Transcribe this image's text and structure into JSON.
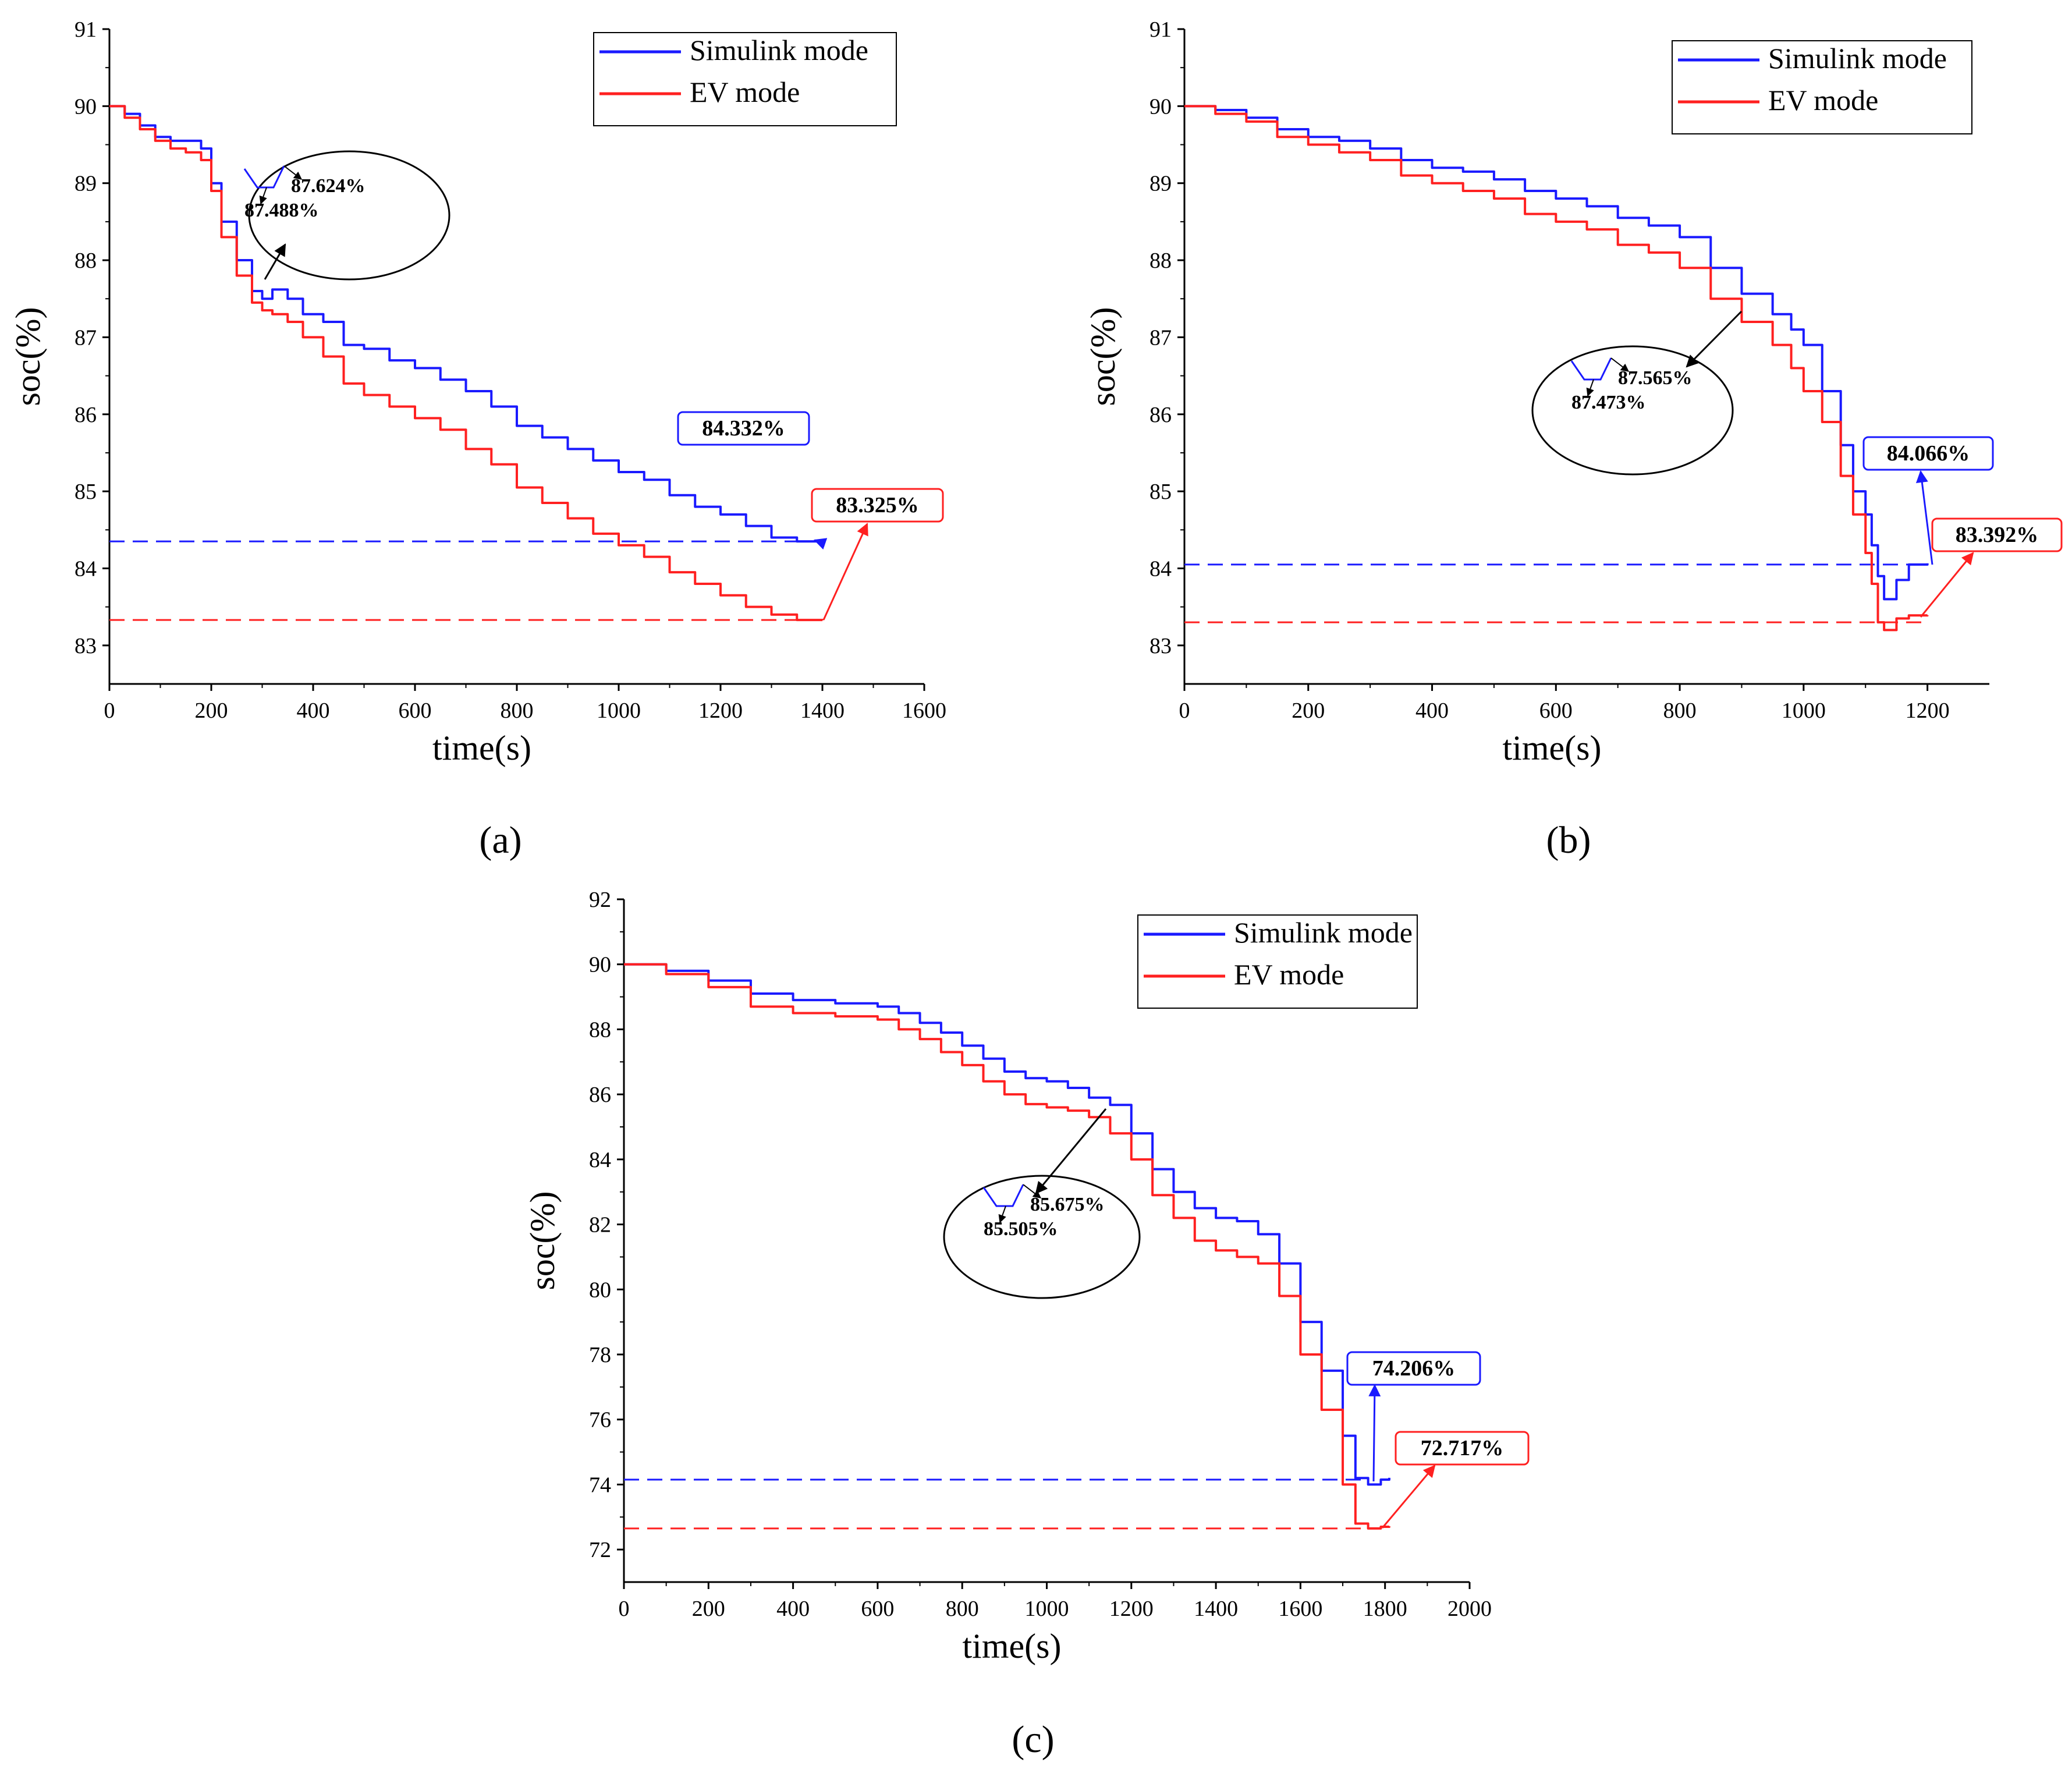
{
  "colors": {
    "simulink": "#1a1aff",
    "ev": "#ff2020",
    "axis": "#000000"
  },
  "chart_data": [
    {
      "type": "line",
      "panel_label": "(a)",
      "xlabel": "time(s)",
      "ylabel": "soc(%)",
      "xlim": [
        0,
        1600
      ],
      "ylim": [
        82.5,
        91
      ],
      "xticks": [
        0,
        200,
        400,
        600,
        800,
        1000,
        1200,
        1400,
        1600
      ],
      "yticks": [
        83,
        84,
        85,
        86,
        87,
        88,
        89,
        90,
        91
      ],
      "legend": {
        "position": "top-right",
        "entries": [
          "Simulink mode",
          "EV mode"
        ]
      },
      "grid": false,
      "series": [
        {
          "name": "Simulink mode",
          "color": "#1a1aff",
          "x": [
            0,
            30,
            60,
            90,
            120,
            150,
            180,
            200,
            220,
            250,
            280,
            300,
            320,
            350,
            380,
            420,
            460,
            500,
            550,
            600,
            650,
            700,
            750,
            800,
            850,
            900,
            950,
            1000,
            1050,
            1100,
            1150,
            1200,
            1250,
            1300,
            1350,
            1400
          ],
          "y": [
            90.0,
            89.9,
            89.75,
            89.6,
            89.55,
            89.55,
            89.45,
            89.0,
            88.5,
            88.0,
            87.6,
            87.5,
            87.62,
            87.5,
            87.3,
            87.2,
            86.9,
            86.85,
            86.7,
            86.6,
            86.45,
            86.3,
            86.1,
            85.85,
            85.7,
            85.55,
            85.4,
            85.25,
            85.15,
            84.95,
            84.8,
            84.7,
            84.55,
            84.4,
            84.35,
            84.332
          ]
        },
        {
          "name": "EV mode",
          "color": "#ff2020",
          "x": [
            0,
            30,
            60,
            90,
            120,
            150,
            180,
            200,
            220,
            250,
            280,
            300,
            320,
            350,
            380,
            420,
            460,
            500,
            550,
            600,
            650,
            700,
            750,
            800,
            850,
            900,
            950,
            1000,
            1050,
            1100,
            1150,
            1200,
            1250,
            1300,
            1350,
            1400
          ],
          "y": [
            90.0,
            89.85,
            89.7,
            89.55,
            89.45,
            89.4,
            89.3,
            88.9,
            88.3,
            87.8,
            87.45,
            87.35,
            87.3,
            87.2,
            87.0,
            86.75,
            86.4,
            86.25,
            86.1,
            85.95,
            85.8,
            85.55,
            85.35,
            85.05,
            84.85,
            84.65,
            84.45,
            84.3,
            84.15,
            83.95,
            83.8,
            83.65,
            83.5,
            83.4,
            83.33,
            83.325
          ]
        }
      ],
      "inset": {
        "top_label": "87.624%",
        "bottom_label": "87.488%"
      },
      "callouts": [
        {
          "text": "84.332%",
          "color": "#1a1aff",
          "value": 84.332
        },
        {
          "text": "83.325%",
          "color": "#ff2020",
          "value": 83.325
        }
      ],
      "reference_lines": [
        {
          "y": 84.35,
          "color": "#1a1aff",
          "x0": 0,
          "x1": 1400
        },
        {
          "y": 83.33,
          "color": "#ff2020",
          "x0": 0,
          "x1": 1400
        }
      ]
    },
    {
      "type": "line",
      "panel_label": "(b)",
      "xlabel": "time(s)",
      "ylabel": "soc(%)",
      "xlim": [
        0,
        1300
      ],
      "ylim": [
        82.5,
        91
      ],
      "xticks": [
        0,
        200,
        400,
        600,
        800,
        1000,
        1200
      ],
      "yticks": [
        83,
        84,
        85,
        86,
        87,
        88,
        89,
        90,
        91
      ],
      "legend": {
        "position": "top-right",
        "entries": [
          "Simulink mode",
          "EV mode"
        ]
      },
      "grid": false,
      "series": [
        {
          "name": "Simulink mode",
          "color": "#1a1aff",
          "x": [
            0,
            50,
            100,
            150,
            200,
            250,
            300,
            350,
            400,
            450,
            500,
            550,
            600,
            650,
            700,
            750,
            800,
            850,
            900,
            950,
            980,
            1000,
            1030,
            1060,
            1080,
            1100,
            1110,
            1120,
            1130,
            1150,
            1170,
            1200
          ],
          "y": [
            90.0,
            89.95,
            89.85,
            89.7,
            89.6,
            89.55,
            89.45,
            89.3,
            89.2,
            89.15,
            89.05,
            88.9,
            88.8,
            88.7,
            88.55,
            88.45,
            88.3,
            87.9,
            87.565,
            87.3,
            87.1,
            86.9,
            86.3,
            85.6,
            85.0,
            84.7,
            84.3,
            83.9,
            83.6,
            83.85,
            84.05,
            84.066
          ]
        },
        {
          "name": "EV mode",
          "color": "#ff2020",
          "x": [
            0,
            50,
            100,
            150,
            200,
            250,
            300,
            350,
            400,
            450,
            500,
            550,
            600,
            650,
            700,
            750,
            800,
            850,
            900,
            950,
            980,
            1000,
            1030,
            1060,
            1080,
            1100,
            1110,
            1120,
            1130,
            1150,
            1170,
            1200
          ],
          "y": [
            90.0,
            89.9,
            89.8,
            89.6,
            89.5,
            89.4,
            89.3,
            89.1,
            89.0,
            88.9,
            88.8,
            88.6,
            88.5,
            88.4,
            88.2,
            88.1,
            87.9,
            87.5,
            87.2,
            86.9,
            86.6,
            86.3,
            85.9,
            85.2,
            84.7,
            84.2,
            83.8,
            83.3,
            83.2,
            83.35,
            83.39,
            83.392
          ]
        }
      ],
      "inset": {
        "top_label": "87.565%",
        "bottom_label": "87.473%"
      },
      "callouts": [
        {
          "text": "84.066%",
          "color": "#1a1aff",
          "value": 84.066
        },
        {
          "text": "83.392%",
          "color": "#ff2020",
          "value": 83.392
        }
      ],
      "reference_lines": [
        {
          "y": 84.05,
          "color": "#1a1aff",
          "x0": 0,
          "x1": 1200
        },
        {
          "y": 83.3,
          "color": "#ff2020",
          "x0": 0,
          "x1": 1200
        }
      ]
    },
    {
      "type": "line",
      "panel_label": "(c)",
      "xlabel": "time(s)",
      "ylabel": "soc(%)",
      "xlim": [
        0,
        2000
      ],
      "ylim": [
        71,
        92
      ],
      "xticks": [
        0,
        200,
        400,
        600,
        800,
        1000,
        1200,
        1400,
        1600,
        1800,
        2000
      ],
      "yticks": [
        72,
        74,
        76,
        78,
        80,
        82,
        84,
        86,
        88,
        90,
        92
      ],
      "legend": {
        "position": "top-right",
        "entries": [
          "Simulink mode",
          "EV mode"
        ]
      },
      "grid": false,
      "series": [
        {
          "name": "Simulink mode",
          "color": "#1a1aff",
          "x": [
            0,
            100,
            200,
            300,
            400,
            500,
            600,
            650,
            700,
            750,
            800,
            850,
            900,
            950,
            1000,
            1050,
            1100,
            1150,
            1200,
            1250,
            1300,
            1350,
            1400,
            1450,
            1500,
            1550,
            1600,
            1650,
            1700,
            1730,
            1760,
            1790,
            1810
          ],
          "y": [
            90.0,
            89.8,
            89.5,
            89.1,
            88.9,
            88.8,
            88.7,
            88.5,
            88.2,
            87.9,
            87.5,
            87.1,
            86.7,
            86.5,
            86.4,
            86.2,
            85.9,
            85.675,
            84.8,
            83.7,
            83.0,
            82.5,
            82.2,
            82.1,
            81.7,
            80.8,
            79.0,
            77.5,
            75.5,
            74.2,
            74.0,
            74.15,
            74.206
          ]
        },
        {
          "name": "EV mode",
          "color": "#ff2020",
          "x": [
            0,
            100,
            200,
            300,
            400,
            500,
            600,
            650,
            700,
            750,
            800,
            850,
            900,
            950,
            1000,
            1050,
            1100,
            1150,
            1200,
            1250,
            1300,
            1350,
            1400,
            1450,
            1500,
            1550,
            1600,
            1650,
            1700,
            1730,
            1760,
            1790,
            1810
          ],
          "y": [
            90.0,
            89.7,
            89.3,
            88.7,
            88.5,
            88.4,
            88.3,
            88.0,
            87.7,
            87.3,
            86.9,
            86.4,
            86.0,
            85.7,
            85.6,
            85.5,
            85.3,
            84.8,
            84.0,
            82.9,
            82.2,
            81.5,
            81.2,
            81.0,
            80.8,
            79.8,
            78.0,
            76.3,
            74.0,
            72.8,
            72.65,
            72.7,
            72.717
          ]
        }
      ],
      "inset": {
        "top_label": "85.675%",
        "bottom_label": "85.505%"
      },
      "callouts": [
        {
          "text": "74.206%",
          "color": "#1a1aff",
          "value": 74.206
        },
        {
          "text": "72.717%",
          "color": "#ff2020",
          "value": 72.717
        }
      ],
      "reference_lines": [
        {
          "y": 74.15,
          "color": "#1a1aff",
          "x0": 0,
          "x1": 1760
        },
        {
          "y": 72.65,
          "color": "#ff2020",
          "x0": 0,
          "x1": 1760
        }
      ]
    }
  ]
}
